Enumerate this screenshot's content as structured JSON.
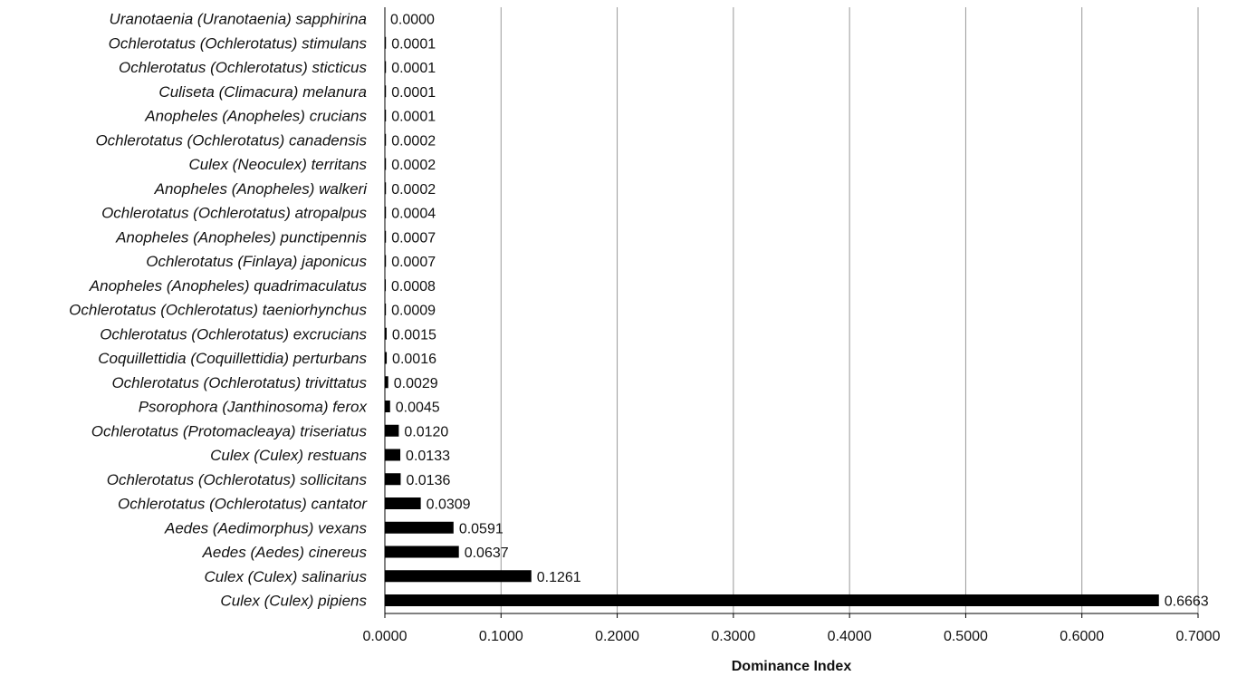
{
  "chart_data": {
    "type": "bar",
    "orientation": "horizontal",
    "xlabel": "Dominance Index",
    "ylabel": "",
    "xlim": [
      0,
      0.7
    ],
    "xticks": [
      0.0,
      0.1,
      0.2,
      0.3,
      0.4,
      0.5,
      0.6,
      0.7
    ],
    "xtick_labels": [
      "0.0000",
      "0.1000",
      "0.2000",
      "0.3000",
      "0.4000",
      "0.5000",
      "0.6000",
      "0.7000"
    ],
    "grid": true,
    "legend": "none",
    "bar_color": "#000000",
    "grid_color": "#999999",
    "categories": [
      "Uranotaenia (Uranotaenia) sapphirina",
      "Ochlerotatus (Ochlerotatus) stimulans",
      "Ochlerotatus (Ochlerotatus) sticticus",
      "Culiseta (Climacura) melanura",
      "Anopheles (Anopheles) crucians",
      "Ochlerotatus (Ochlerotatus) canadensis",
      "Culex (Neoculex) territans",
      "Anopheles (Anopheles) walkeri",
      "Ochlerotatus (Ochlerotatus) atropalpus",
      "Anopheles (Anopheles) punctipennis",
      "Ochlerotatus (Finlaya) japonicus",
      "Anopheles (Anopheles) quadrimaculatus",
      "Ochlerotatus (Ochlerotatus) taeniorhynchus",
      "Ochlerotatus (Ochlerotatus) excrucians",
      "Coquillettidia (Coquillettidia) perturbans",
      "Ochlerotatus (Ochlerotatus) trivittatus",
      "Psorophora (Janthinosoma) ferox",
      "Ochlerotatus (Protomacleaya) triseriatus",
      "Culex (Culex) restuans",
      "Ochlerotatus (Ochlerotatus) sollicitans",
      "Ochlerotatus (Ochlerotatus) cantator",
      "Aedes (Aedimorphus) vexans",
      "Aedes (Aedes) cinereus",
      "Culex (Culex) salinarius",
      "Culex (Culex) pipiens"
    ],
    "values": [
      0.0,
      0.0001,
      0.0001,
      0.0001,
      0.0001,
      0.0002,
      0.0002,
      0.0002,
      0.0004,
      0.0007,
      0.0007,
      0.0008,
      0.0009,
      0.0015,
      0.0016,
      0.0029,
      0.0045,
      0.012,
      0.0133,
      0.0136,
      0.0309,
      0.0591,
      0.0637,
      0.1261,
      0.6663
    ],
    "value_labels": [
      "0.0000",
      "0.0001",
      "0.0001",
      "0.0001",
      "0.0001",
      "0.0002",
      "0.0002",
      "0.0002",
      "0.0004",
      "0.0007",
      "0.0007",
      "0.0008",
      "0.0009",
      "0.0015",
      "0.0016",
      "0.0029",
      "0.0045",
      "0.0120",
      "0.0133",
      "0.0136",
      "0.0309",
      "0.0591",
      "0.0637",
      "0.1261",
      "0.6663"
    ]
  }
}
